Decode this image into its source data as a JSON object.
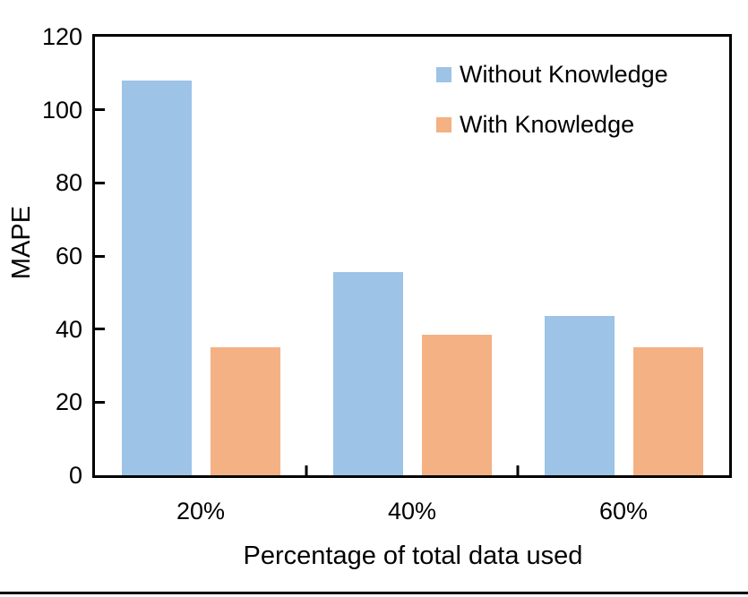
{
  "chart_data": {
    "type": "bar",
    "title": "",
    "xlabel": "Percentage of total data used",
    "ylabel": "MAPE",
    "categories": [
      "20%",
      "40%",
      "60%"
    ],
    "series": [
      {
        "name": "Without Knowledge",
        "color": "#9DC3E6",
        "values": [
          108,
          55.5,
          43.5
        ]
      },
      {
        "name": "With Knowledge",
        "color": "#F4B183",
        "values": [
          35,
          38.5,
          35
        ]
      }
    ],
    "ylim": [
      0,
      120
    ],
    "yticks": [
      0,
      20,
      40,
      60,
      80,
      100,
      120
    ],
    "grid": false,
    "legend_position": "top-right-inside",
    "axis_color": "#000000",
    "text_color": "#000000",
    "background_color": "#ffffff"
  }
}
